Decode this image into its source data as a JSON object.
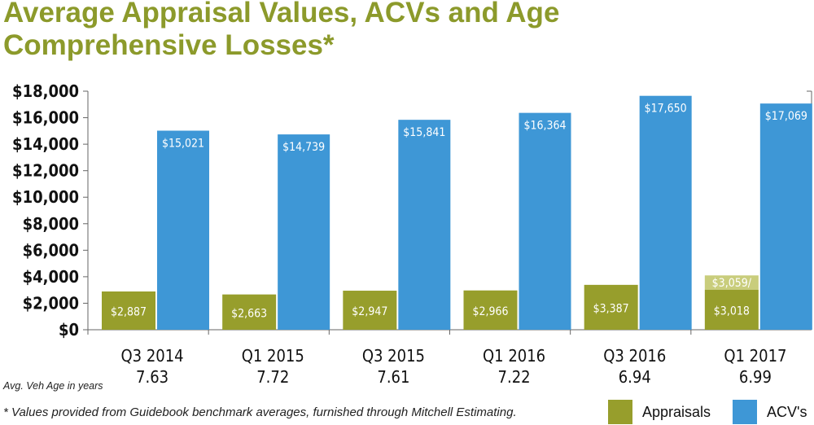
{
  "title_line1": "Average Appraisal Values, ACVs and Age",
  "title_line2": "Comprehensive Losses*",
  "age_label": "Avg. Veh Age in years",
  "footnote": "* Values provided from Guidebook benchmark averages, furnished through Mitchell Estimating.",
  "colors": {
    "appraisals": "#979e2c",
    "acv": "#3e97d6",
    "appraisal_overlay": "#c9cd7c",
    "title": "#8c9a2b"
  },
  "chart_data": {
    "type": "bar",
    "title": "Average Appraisal Values, ACVs and Age Comprehensive Losses*",
    "categories": [
      "Q3 2014",
      "Q1 2015",
      "Q3 2015",
      "Q1 2016",
      "Q3 2016",
      "Q1 2017"
    ],
    "ages": [
      "7.63",
      "7.72",
      "7.61",
      "7.22",
      "6.94",
      "6.99"
    ],
    "series": [
      {
        "name": "Appraisals",
        "values": [
          2887,
          2663,
          2947,
          2966,
          3387,
          3018
        ],
        "labels": [
          "$2,887",
          "$2,663",
          "$2,947",
          "$2,966",
          "$3,387",
          "$3,018"
        ]
      },
      {
        "name": "ACV's",
        "values": [
          15021,
          14739,
          15841,
          16364,
          17650,
          17069
        ],
        "labels": [
          "$15,021",
          "$14,739",
          "$15,841",
          "$16,364",
          "$17,650",
          "$17,069"
        ]
      }
    ],
    "annotation": {
      "category": "Q1 2017",
      "label": "$3,059/"
    },
    "ylim": [
      0,
      18000
    ],
    "yticks": [
      0,
      2000,
      4000,
      6000,
      8000,
      10000,
      12000,
      14000,
      16000,
      18000
    ],
    "ytick_labels": [
      "$0",
      "$2,000",
      "$4,000",
      "$6,000",
      "$8,000",
      "$10,000",
      "$12,000",
      "$14,000",
      "$16,000",
      "$18,000"
    ],
    "legend": "bottom-right",
    "grid": false
  }
}
